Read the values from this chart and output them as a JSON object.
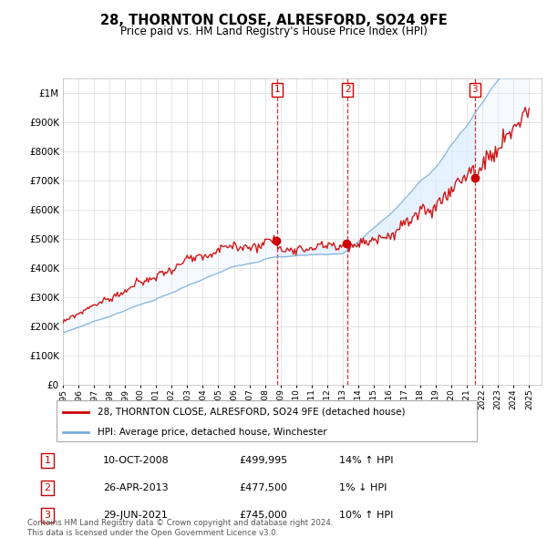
{
  "title": "28, THORNTON CLOSE, ALRESFORD, SO24 9FE",
  "subtitle": "Price paid vs. HM Land Registry's House Price Index (HPI)",
  "ytick_vals": [
    0,
    100000,
    200000,
    300000,
    400000,
    500000,
    600000,
    700000,
    800000,
    900000,
    1000000
  ],
  "ylim": [
    0,
    1050000
  ],
  "x_start_year": 1995,
  "x_end_year": 2025,
  "legend_property_label": "28, THORNTON CLOSE, ALRESFORD, SO24 9FE (detached house)",
  "legend_hpi_label": "HPI: Average price, detached house, Winchester",
  "property_color": "#cc0000",
  "hpi_color": "#7aaedb",
  "sale1_date": "10-OCT-2008",
  "sale1_price": "£499,995",
  "sale1_info": "14% ↑ HPI",
  "sale2_date": "26-APR-2013",
  "sale2_price": "£477,500",
  "sale2_info": "1% ↓ HPI",
  "sale3_date": "29-JUN-2021",
  "sale3_price": "£745,000",
  "sale3_info": "10% ↑ HPI",
  "footnote1": "Contains HM Land Registry data © Crown copyright and database right 2024.",
  "footnote2": "This data is licensed under the Open Government Licence v3.0.",
  "background_color": "#ffffff",
  "grid_color": "#cccccc",
  "shading_color": "#ddeeff",
  "sale1_year": 2008.77,
  "sale2_year": 2013.32,
  "sale3_year": 2021.5
}
